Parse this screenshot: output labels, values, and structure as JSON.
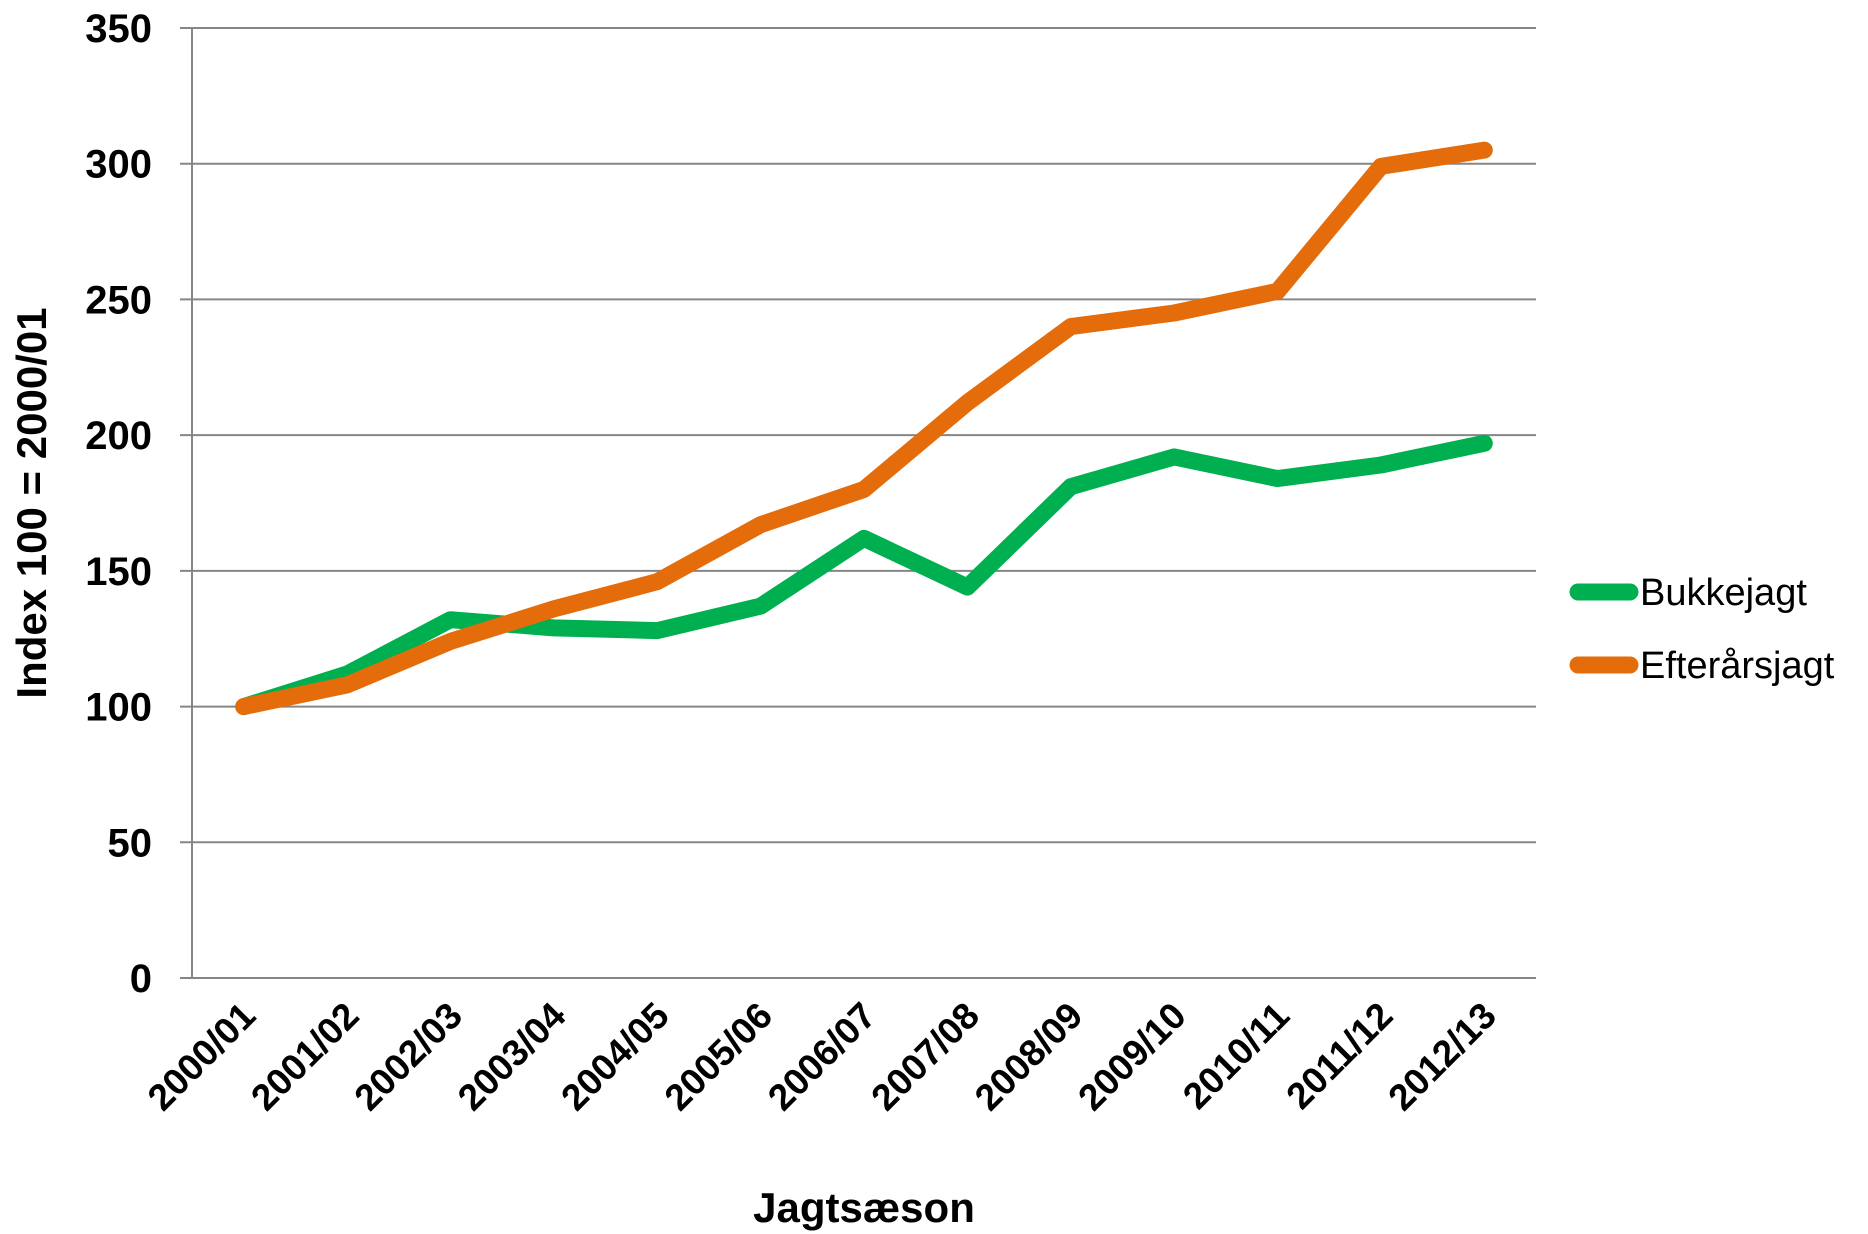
{
  "chart_data": {
    "type": "line",
    "categories": [
      "2000/01",
      "2001/02",
      "2002/03",
      "2003/04",
      "2004/05",
      "2005/06",
      "2006/07",
      "2007/08",
      "2008/09",
      "2009/10",
      "2010/11",
      "2011/12",
      "2012/13"
    ],
    "series": [
      {
        "name": "Bukkejagt",
        "color": "#00b050",
        "values": [
          100,
          112,
          132,
          129,
          128,
          137,
          162,
          144,
          181,
          192,
          184,
          189,
          197
        ]
      },
      {
        "name": "Efterårsjagt",
        "color": "#e46c0a",
        "values": [
          100,
          108,
          124,
          136,
          146,
          167,
          180,
          212,
          240,
          245,
          253,
          299,
          305
        ]
      }
    ],
    "xlabel": "Jagtsæson",
    "ylabel": "Index 100 = 2000/01",
    "ylim": [
      0,
      350
    ],
    "yticks": [
      0,
      50,
      100,
      150,
      200,
      250,
      300,
      350
    ],
    "grid": "horizontal",
    "legend": "right"
  }
}
